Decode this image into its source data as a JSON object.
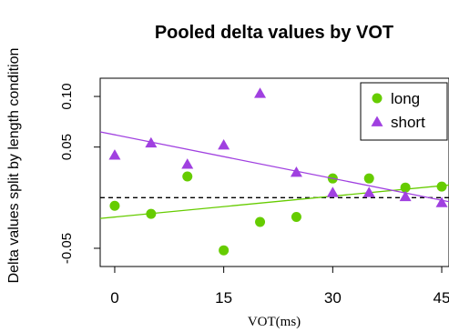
{
  "chart_data": {
    "type": "scatter",
    "title": "Pooled delta values by VOT",
    "xlabel": "VOT(ms)",
    "ylabel": "Delta values split by length condition",
    "xlim": [
      -2,
      46
    ],
    "ylim": [
      -0.068,
      0.118
    ],
    "xticks": [
      "0",
      "15",
      "30",
      "45"
    ],
    "yticks": [
      "-0.05",
      "0.05",
      "0.10"
    ],
    "grid": false,
    "legend_position": "top-right",
    "reference_line": {
      "y": 0,
      "style": "dashed"
    },
    "series": [
      {
        "name": "long",
        "color": "#66cc00",
        "marker": "circle",
        "x": [
          0,
          5,
          10,
          15,
          20,
          25,
          30,
          35,
          40,
          45
        ],
        "y": [
          -0.008,
          -0.016,
          0.021,
          -0.052,
          -0.024,
          -0.019,
          0.019,
          0.019,
          0.01,
          0.011
        ],
        "fit": {
          "x": [
            -2,
            46
          ],
          "y": [
            -0.0205,
            0.0125
          ]
        }
      },
      {
        "name": "short",
        "color": "#a040e0",
        "marker": "triangle",
        "x": [
          0,
          5,
          10,
          15,
          20,
          25,
          30,
          35,
          40,
          45
        ],
        "y": [
          0.042,
          0.054,
          0.033,
          0.052,
          0.103,
          0.025,
          0.005,
          0.005,
          0.001,
          -0.005
        ],
        "fit": {
          "x": [
            -2,
            46
          ],
          "y": [
            0.065,
            -0.004
          ]
        }
      }
    ]
  }
}
